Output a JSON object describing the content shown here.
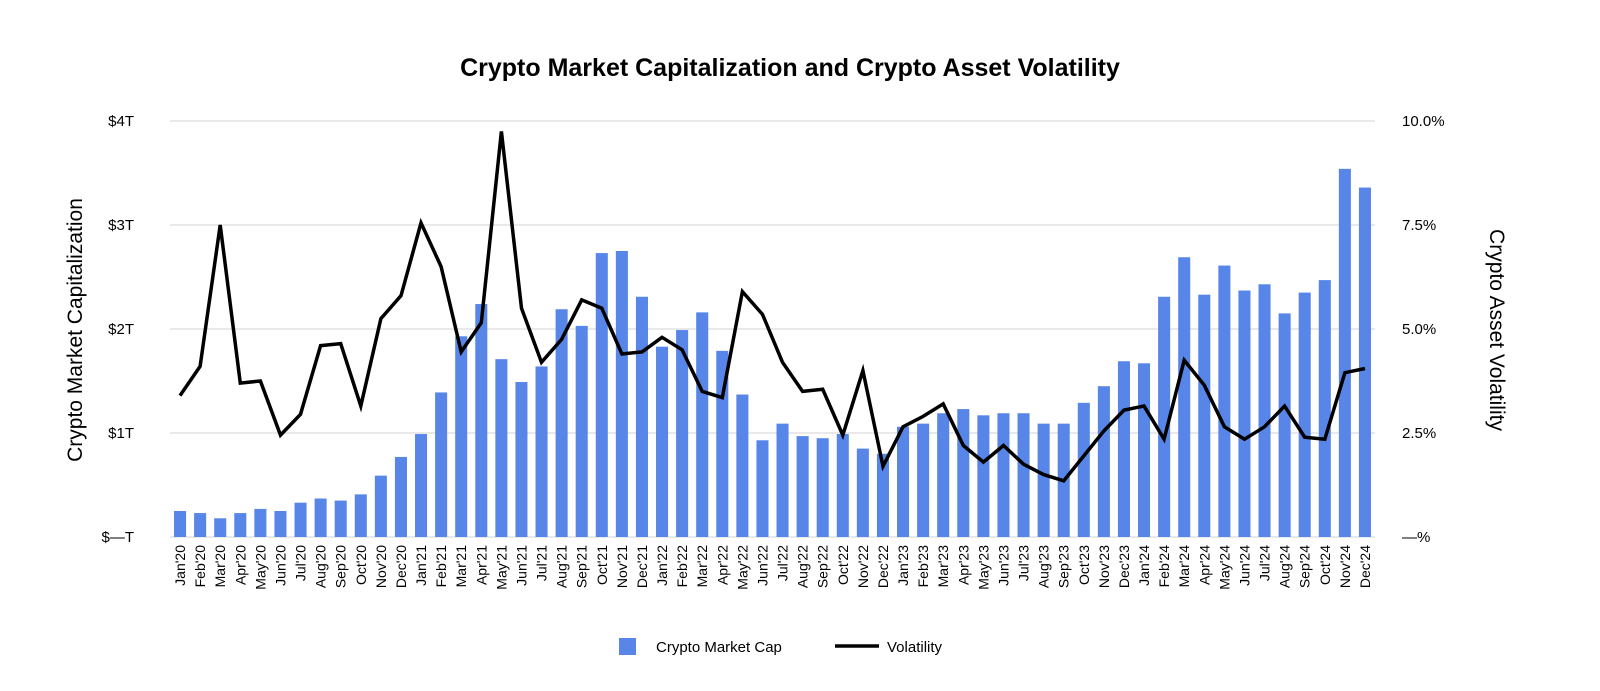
{
  "chart_data": {
    "type": "bar",
    "title": "Crypto Market Capitalization and Crypto Asset Volatility",
    "ylabel": "Crypto Market Capitalization",
    "y2label": "Crypto Asset Volatility",
    "ylim": [
      0,
      4
    ],
    "y2lim": [
      0,
      10
    ],
    "y_ticks": [
      "$—T",
      "$1T",
      "$2T",
      "$3T",
      "$4T"
    ],
    "y2_ticks": [
      "—%",
      "2.5%",
      "5.0%",
      "7.5%",
      "10.0%"
    ],
    "grid": true,
    "legend_position": "bottom",
    "categories": [
      "Jan'20",
      "Feb'20",
      "Mar'20",
      "Apr'20",
      "May'20",
      "Jun'20",
      "Jul'20",
      "Aug'20",
      "Sep'20",
      "Oct'20",
      "Nov'20",
      "Dec'20",
      "Jan'21",
      "Feb'21",
      "Mar'21",
      "Apr'21",
      "May'21",
      "Jun'21",
      "Jul'21",
      "Aug'21",
      "Sep'21",
      "Oct'21",
      "Nov'21",
      "Dec'21",
      "Jan'22",
      "Feb'22",
      "Mar'22",
      "Apr'22",
      "May'22",
      "Jun'22",
      "Jul'22",
      "Aug'22",
      "Sep'22",
      "Oct'22",
      "Nov'22",
      "Dec'22",
      "Jan'23",
      "Feb'23",
      "Mar'23",
      "Apr'23",
      "May'23",
      "Jun'23",
      "Jul'23",
      "Aug'23",
      "Sep'23",
      "Oct'23",
      "Nov'23",
      "Dec'23",
      "Jan'24",
      "Feb'24",
      "Mar'24",
      "Apr'24",
      "May'24",
      "Jun'24",
      "Jul'24",
      "Aug'24",
      "Sep'24",
      "Oct'24",
      "Nov'24",
      "Dec'24"
    ],
    "series": [
      {
        "name": "Crypto Market Cap",
        "type": "bar",
        "axis": "left",
        "color": "#5786e8",
        "values": [
          0.25,
          0.23,
          0.18,
          0.23,
          0.27,
          0.25,
          0.33,
          0.37,
          0.35,
          0.41,
          0.59,
          0.77,
          0.99,
          1.39,
          1.93,
          2.24,
          1.71,
          1.49,
          1.64,
          2.19,
          2.03,
          2.73,
          2.75,
          2.31,
          1.83,
          1.99,
          2.16,
          1.79,
          1.37,
          0.93,
          1.09,
          0.97,
          0.95,
          0.99,
          0.85,
          0.8,
          1.06,
          1.09,
          1.19,
          1.23,
          1.17,
          1.19,
          1.19,
          1.09,
          1.09,
          1.29,
          1.45,
          1.69,
          1.67,
          2.31,
          2.69,
          2.33,
          2.61,
          2.37,
          2.43,
          2.15,
          2.35,
          2.47,
          3.54,
          3.36
        ]
      },
      {
        "name": "Volatility",
        "type": "line",
        "axis": "right",
        "color": "#000000",
        "values": [
          3.4,
          4.1,
          7.5,
          3.7,
          3.75,
          2.45,
          2.95,
          4.6,
          4.65,
          3.15,
          5.25,
          5.8,
          7.55,
          6.5,
          4.45,
          5.15,
          9.75,
          5.5,
          4.2,
          4.75,
          5.7,
          5.5,
          4.4,
          4.45,
          4.8,
          4.5,
          3.5,
          3.35,
          5.9,
          5.35,
          4.2,
          3.5,
          3.55,
          2.45,
          4.0,
          1.7,
          2.65,
          2.9,
          3.2,
          2.2,
          1.8,
          2.2,
          1.75,
          1.5,
          1.35,
          1.95,
          2.55,
          3.05,
          3.15,
          2.35,
          4.25,
          3.65,
          2.65,
          2.35,
          2.65,
          3.15,
          2.4,
          2.35,
          3.95,
          4.05
        ]
      }
    ],
    "legend": [
      {
        "label": "Crypto Market Cap",
        "color": "#5786e8",
        "shape": "square"
      },
      {
        "label": "Volatility",
        "color": "#000000",
        "shape": "line"
      }
    ]
  }
}
